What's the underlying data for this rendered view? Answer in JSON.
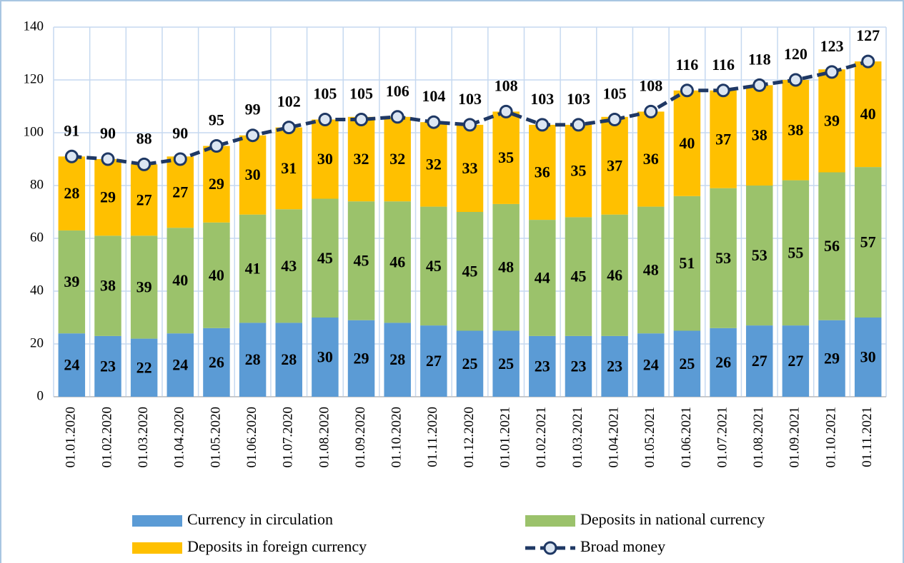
{
  "chart_data": {
    "type": "bar",
    "stacked": true,
    "categories": [
      "01.01.2020",
      "01.02.2020",
      "01.03.2020",
      "01.04.2020",
      "01.05.2020",
      "01.06.2020",
      "01.07.2020",
      "01.08.2020",
      "01.09.2020",
      "01.10.2020",
      "01.11.2020",
      "01.12.2020",
      "01.01.2021",
      "01.02.2021",
      "01.03.2021",
      "01.04.2021",
      "01.05.2021",
      "01.06.2021",
      "01.07.2021",
      "01.08.2021",
      "01.09.2021",
      "01.10.2021",
      "01.11.2021"
    ],
    "series": [
      {
        "name": "Currency in circulation",
        "color": "#5b9bd5",
        "values": [
          24,
          23,
          22,
          24,
          26,
          28,
          28,
          30,
          29,
          28,
          27,
          25,
          25,
          23,
          23,
          23,
          24,
          25,
          26,
          27,
          27,
          29,
          30
        ]
      },
      {
        "name": "Deposits in national currency",
        "color": "#9bc26b",
        "values": [
          39,
          38,
          39,
          40,
          40,
          41,
          43,
          45,
          45,
          46,
          45,
          45,
          48,
          44,
          45,
          46,
          48,
          51,
          53,
          53,
          55,
          56,
          57
        ]
      },
      {
        "name": "Deposits in foreign currency",
        "color": "#ffc000",
        "values": [
          28,
          29,
          27,
          27,
          29,
          30,
          31,
          30,
          32,
          32,
          32,
          33,
          35,
          36,
          35,
          37,
          36,
          40,
          37,
          38,
          38,
          39,
          40
        ]
      },
      {
        "name": "Broad money",
        "type": "line",
        "color": "#1f3864",
        "values": [
          91,
          90,
          88,
          90,
          95,
          99,
          102,
          105,
          105,
          106,
          104,
          103,
          108,
          103,
          103,
          105,
          108,
          116,
          116,
          118,
          120,
          123,
          127
        ]
      }
    ],
    "ylim": [
      0,
      140
    ],
    "yticks": [
      0,
      20,
      40,
      60,
      80,
      100,
      120,
      140
    ],
    "grid": true
  }
}
